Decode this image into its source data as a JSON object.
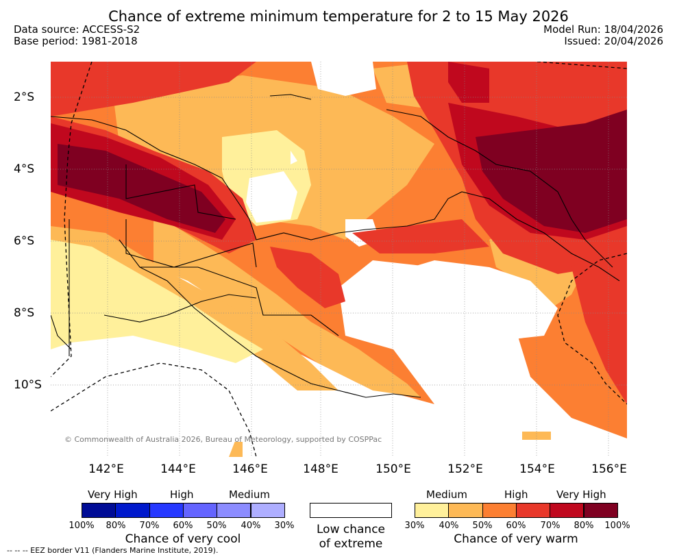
{
  "title": "Chance of extreme minimum temperature for 2 to 15 May 2026",
  "meta": {
    "data_source": "Data source: ACCESS-S2",
    "base_period": "Base period: 1981-2018",
    "model_run": "Model Run: 18/04/2026",
    "issued": "Issued: 20/04/2026"
  },
  "map": {
    "copyright": "© Commonwealth of Australia 2026, Bureau of Meteorology, supported by COSPPac",
    "lat_labels": [
      "2°S",
      "4°S",
      "6°S",
      "8°S",
      "10°S"
    ],
    "lon_labels": [
      "142°E",
      "144°E",
      "146°E",
      "148°E",
      "150°E",
      "152°E",
      "154°E",
      "156°E"
    ]
  },
  "legend": {
    "cool": {
      "heads": [
        "Very High",
        "High",
        "Medium"
      ],
      "ticks": [
        "100%",
        "80%",
        "70%",
        "60%",
        "50%",
        "40%",
        "30%"
      ],
      "caption": "Chance of very cool",
      "colors": [
        "#000c96",
        "#0019cc",
        "#2638ff",
        "#6464ff",
        "#8c8cff",
        "#aeaeff"
      ]
    },
    "low": {
      "caption_line1": "Low chance",
      "caption_line2": "of extreme"
    },
    "warm": {
      "heads": [
        "Medium",
        "High",
        "Very High"
      ],
      "ticks": [
        "30%",
        "40%",
        "50%",
        "60%",
        "70%",
        "80%",
        "100%"
      ],
      "caption": "Chance of very warm",
      "colors": [
        "#fff09b",
        "#fdb956",
        "#fc7f32",
        "#e8382a",
        "#c0081e",
        "#7f0021"
      ]
    }
  },
  "footnote": "--  --  -- EEZ border V11 (Flanders Marine Institute, 2019)."
}
